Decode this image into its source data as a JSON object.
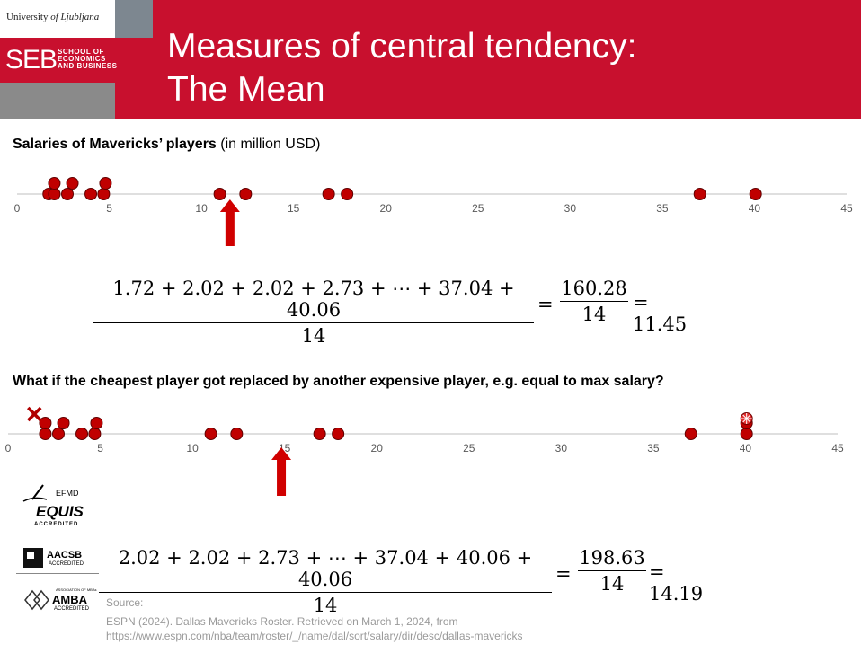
{
  "header": {
    "university_prefix": "University",
    "university_of": "of",
    "university_name": "Ljubljana",
    "school_abbr": "SEB",
    "school_line1": "SCHOOL OF",
    "school_line2": "ECONOMICS",
    "school_line3": "AND BUSINESS",
    "title_line1": "Measures of central tendency:",
    "title_line2": "The Mean"
  },
  "section1": {
    "heading_bold": "Salaries of Mavericks’ players",
    "heading_normal": "(in million USD)"
  },
  "section2": {
    "heading": "What if the cheapest player got replaced by another expensive player, e.g. equal to max salary?"
  },
  "formula1": {
    "numerator": "1.72 + 2.02 + 2.02 + 2.73 + ⋯ + 37.04 + 40.06",
    "denominator": "14",
    "equals1": "=",
    "num2": "160.28",
    "den2": "14",
    "result": "= 11.45"
  },
  "formula2": {
    "numerator": "2.02 + 2.02 + 2.73 + ⋯ + 37.04 + 40.06 + 40.06",
    "denominator": "14",
    "equals1": "=",
    "num2": "198.63",
    "den2": "14",
    "result": "= 14.19"
  },
  "accreditations": {
    "efmd_top": "EFMD",
    "equis": "EQUIS",
    "equis_sub": "ACCREDITED",
    "aacsb": "AACSB",
    "aacsb_sub": "ACCREDITED",
    "amba_top": "ASSOCIATION OF MBAs",
    "amba": "AMBA",
    "amba_sub": "ACCREDITED"
  },
  "source": {
    "label": "Source:",
    "citation": "ESPN (2024). Dallas Mavericks Roster. Retrieved on March 1, 2024, from",
    "url": "https://www.espn.com/nba/team/roster/_/name/dal/sort/salary/dir/desc/dallas-mavericks"
  },
  "colors": {
    "brand": "#c8102e",
    "dot": "#c00000",
    "axis": "#bfbfbf",
    "arrow": "#d00000"
  },
  "chart_data": [
    {
      "type": "scatter",
      "title": "",
      "xlim": [
        0,
        45
      ],
      "ticks": [
        0,
        5,
        10,
        15,
        20,
        25,
        30,
        35,
        40,
        45
      ],
      "tick_labels": [
        "0",
        "5",
        "10",
        "15",
        "20",
        "25",
        "30",
        "35",
        "40",
        "45"
      ],
      "mean_marker": 11.45,
      "points": [
        {
          "x": 1.72,
          "stack": 0
        },
        {
          "x": 2.02,
          "stack": 0
        },
        {
          "x": 2.02,
          "stack": 1
        },
        {
          "x": 2.73,
          "stack": 0
        },
        {
          "x": 3.0,
          "stack": 1
        },
        {
          "x": 4.0,
          "stack": 0
        },
        {
          "x": 4.7,
          "stack": 0
        },
        {
          "x": 4.8,
          "stack": 1
        },
        {
          "x": 11.0,
          "stack": 0
        },
        {
          "x": 12.4,
          "stack": 0
        },
        {
          "x": 16.9,
          "stack": 0
        },
        {
          "x": 17.9,
          "stack": 0
        },
        {
          "x": 37.04,
          "stack": 0
        },
        {
          "x": 40.06,
          "stack": 0
        }
      ]
    },
    {
      "type": "scatter",
      "title": "",
      "xlim": [
        0,
        45
      ],
      "ticks": [
        0,
        5,
        10,
        15,
        20,
        25,
        30,
        35,
        40,
        45
      ],
      "tick_labels": [
        "0",
        "5",
        "10",
        "15",
        "20",
        "25",
        "30",
        "35",
        "40",
        "45"
      ],
      "mean_marker": 14.19,
      "removed_point": 1.72,
      "added_point": 40.06,
      "points": [
        {
          "x": 2.02,
          "stack": 0
        },
        {
          "x": 2.02,
          "stack": 1
        },
        {
          "x": 2.73,
          "stack": 0
        },
        {
          "x": 3.0,
          "stack": 1
        },
        {
          "x": 4.0,
          "stack": 0
        },
        {
          "x": 4.7,
          "stack": 0
        },
        {
          "x": 4.8,
          "stack": 1
        },
        {
          "x": 11.0,
          "stack": 0
        },
        {
          "x": 12.4,
          "stack": 0
        },
        {
          "x": 16.9,
          "stack": 0
        },
        {
          "x": 17.9,
          "stack": 0
        },
        {
          "x": 37.04,
          "stack": 0
        },
        {
          "x": 40.06,
          "stack": 0
        },
        {
          "x": 40.06,
          "stack": 1
        }
      ]
    }
  ]
}
